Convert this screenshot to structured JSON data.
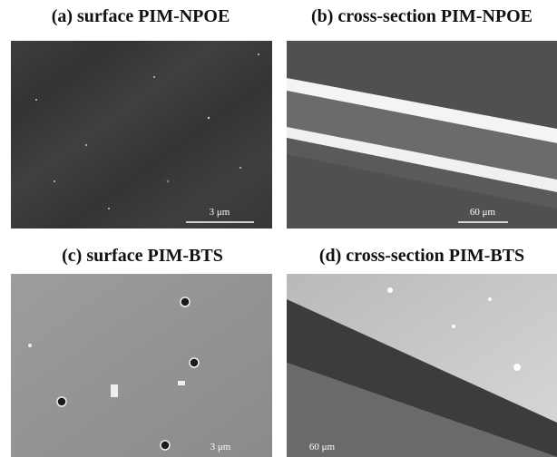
{
  "panels": [
    {
      "title": "(a) surface PIM-NPOE",
      "scale_label": "3 μm"
    },
    {
      "title": "(b) cross-section PIM-NPOE",
      "scale_label": "60 μm"
    },
    {
      "title": "(c) surface PIM-BTS",
      "scale_label": "3 μm"
    },
    {
      "title": "(d) cross-section PIM-BTS",
      "scale_label": "60 μm"
    }
  ]
}
